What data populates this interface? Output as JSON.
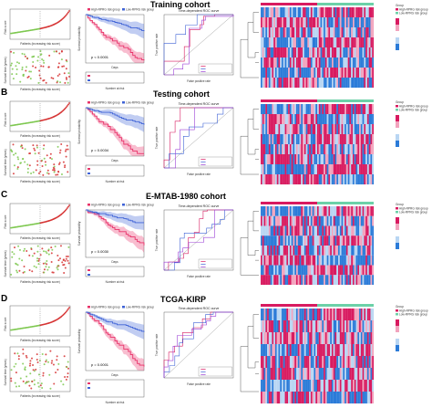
{
  "panels": [
    {
      "letter": "",
      "cohort": "Training cohort",
      "km_p": "p < 0.0001"
    },
    {
      "letter": "B",
      "cohort": "Testing cohort",
      "km_p": "p = 0.0034"
    },
    {
      "letter": "C",
      "cohort": "E-MTAB-1980 cohort",
      "km_p": "p = 0.0030"
    },
    {
      "letter": "D",
      "cohort": "TCGA-KIRP",
      "km_p": "p = 0.0001"
    }
  ],
  "labels": {
    "km_legend_high": "High-RPRG risk group",
    "km_legend_low": "Low-RPRG risk group",
    "km_ylabel": "Survival probability",
    "km_xlabel": "Days",
    "risk_table_title": "Number at risk",
    "roc_title": "Time-dependent ROC curve",
    "roc_xlabel": "False positive rate",
    "roc_ylabel": "True positive rate",
    "risk_xlabel": "Patients (increasing risk score)",
    "risk_ylabel": "Risk score",
    "time_ylabel": "Survival time (years)",
    "heat_legend_title": "Group",
    "heat_legend_high": "High-RPRG risk group",
    "heat_legend_low": "Low-RPRG risk group"
  },
  "colors": {
    "high": "#e8336a",
    "low": "#3f63d6",
    "heat_high": "#d81b60",
    "heat_low": "#2b7bd8",
    "alive": "#7ec850",
    "dead": "#d63333"
  }
}
